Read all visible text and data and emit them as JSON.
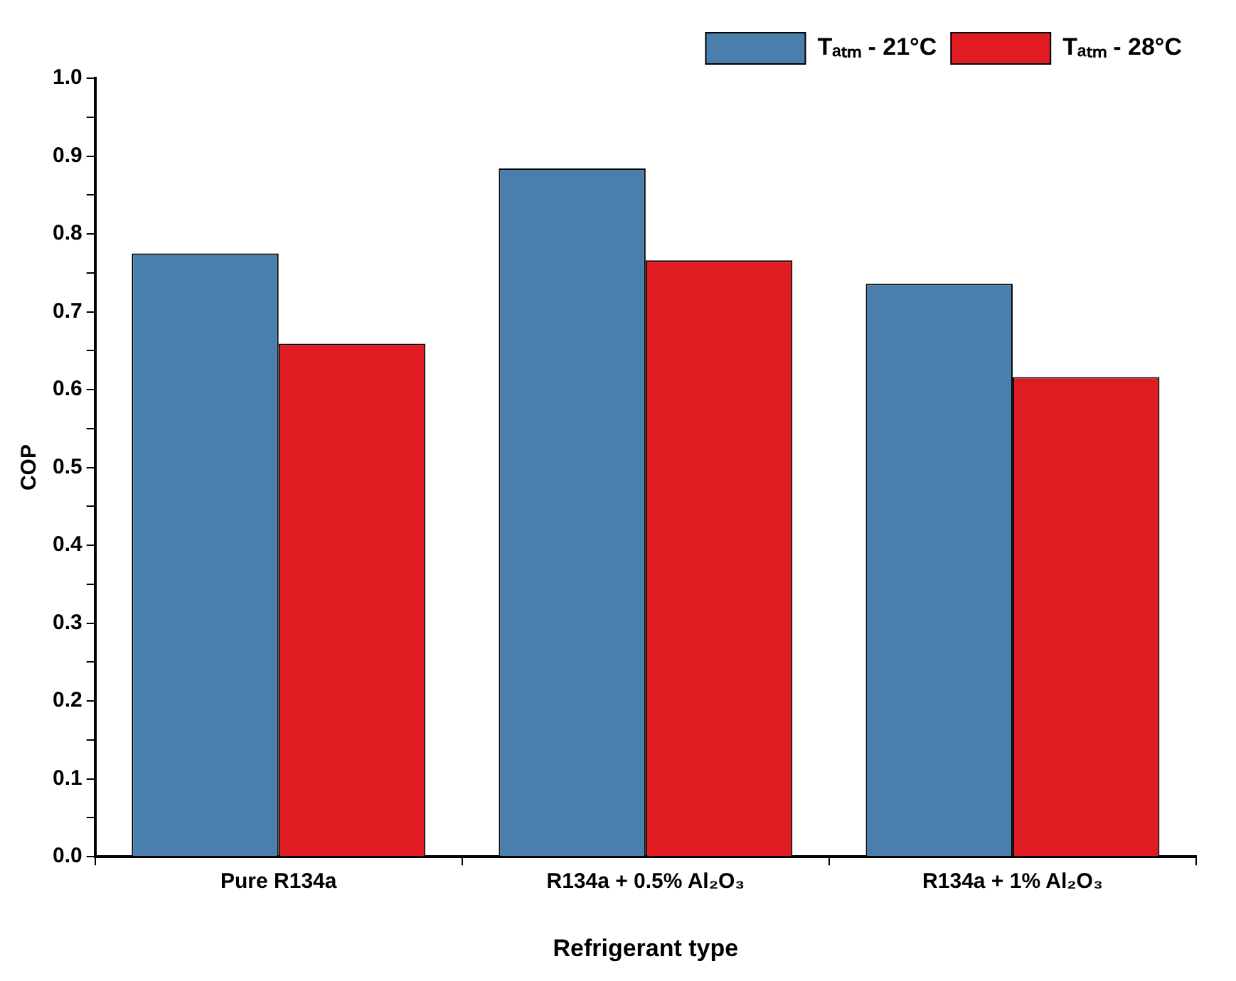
{
  "chart_data": {
    "type": "bar",
    "xlabel": "Refrigerant type",
    "ylabel": "COP",
    "categories": [
      "Pure R134a",
      "R134a + 0.5% Al₂O₃",
      "R134a + 1% Al₂O₃"
    ],
    "series": [
      {
        "name": "Tₐₜₘ - 21°C",
        "color": "#4a7fad",
        "values": [
          0.775,
          0.884,
          0.736
        ]
      },
      {
        "name": "Tₐₜₘ - 28°C",
        "color": "#e01b22",
        "values": [
          0.659,
          0.766,
          0.616
        ]
      }
    ],
    "ylim": [
      0,
      1
    ],
    "yticks": [
      {
        "value": 0,
        "label": "0.0"
      },
      {
        "value": 0.05,
        "label": null
      },
      {
        "value": 0.1,
        "label": "0.1"
      },
      {
        "value": 0.15,
        "label": null
      },
      {
        "value": 0.2,
        "label": "0.2"
      },
      {
        "value": 0.25,
        "label": null
      },
      {
        "value": 0.3,
        "label": "0.3"
      },
      {
        "value": 0.35,
        "label": null
      },
      {
        "value": 0.4,
        "label": "0.4"
      },
      {
        "value": 0.45,
        "label": null
      },
      {
        "value": 0.5,
        "label": "0.5"
      },
      {
        "value": 0.55,
        "label": null
      },
      {
        "value": 0.6,
        "label": "0.6"
      },
      {
        "value": 0.65,
        "label": null
      },
      {
        "value": 0.7,
        "label": "0.7"
      },
      {
        "value": 0.75,
        "label": null
      },
      {
        "value": 0.8,
        "label": "0.8"
      },
      {
        "value": 0.85,
        "label": null
      },
      {
        "value": 0.9,
        "label": "0.9"
      },
      {
        "value": 0.95,
        "label": null
      },
      {
        "value": 1,
        "label": "1.0"
      }
    ],
    "grid": false,
    "legend": "top right"
  }
}
